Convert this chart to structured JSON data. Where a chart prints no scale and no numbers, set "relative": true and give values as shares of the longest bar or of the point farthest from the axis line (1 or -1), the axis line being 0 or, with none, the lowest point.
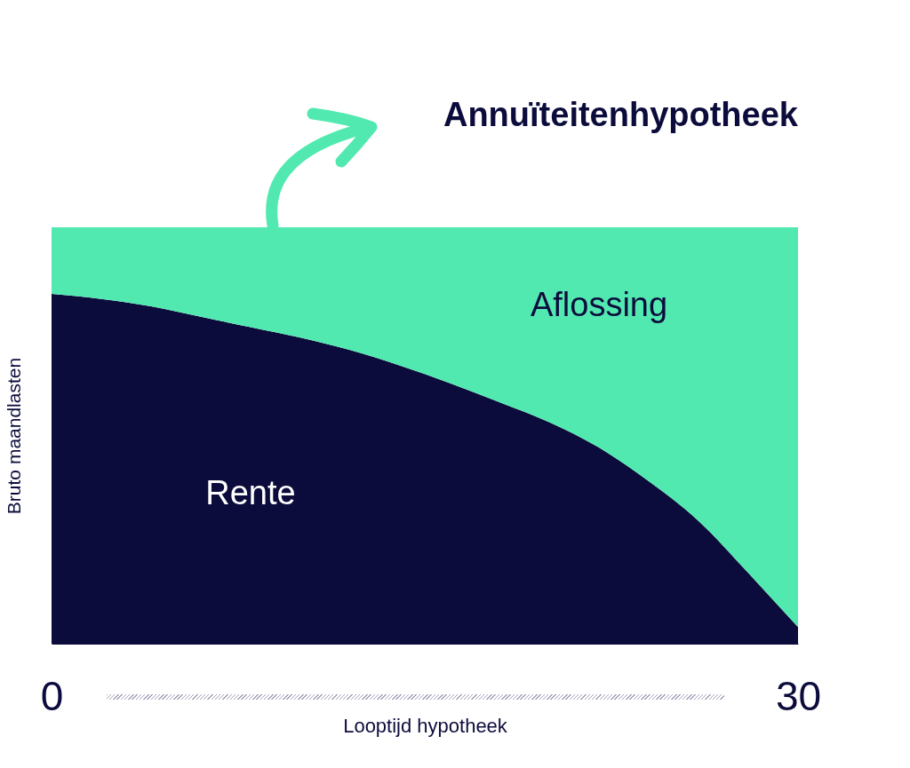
{
  "chart_data": {
    "type": "area",
    "title": "Annuïteitenhypotheek",
    "xlabel": "Looptijd hypotheek",
    "ylabel": "Bruto maandlasten",
    "x": [
      0,
      2,
      4,
      6,
      8,
      10,
      12,
      14,
      16,
      18,
      20,
      22,
      24,
      26,
      28,
      29,
      30
    ],
    "xlim": [
      0,
      30
    ],
    "xticks": [
      0,
      30
    ],
    "stacked": true,
    "relative": true,
    "tick_labels": "x",
    "series": [
      {
        "name": "Rente",
        "color": "#0c0c3c",
        "values": [
          0.84,
          0.828,
          0.81,
          0.785,
          0.76,
          0.735,
          0.705,
          0.668,
          0.626,
          0.58,
          0.532,
          0.471,
          0.39,
          0.295,
          0.17,
          0.105,
          0.04
        ]
      },
      {
        "name": "Aflossing",
        "color": "#52e9b1",
        "values": [
          0.16,
          0.172,
          0.19,
          0.215,
          0.24,
          0.265,
          0.295,
          0.332,
          0.374,
          0.42,
          0.468,
          0.529,
          0.61,
          0.705,
          0.83,
          0.895,
          0.96
        ]
      }
    ]
  }
}
